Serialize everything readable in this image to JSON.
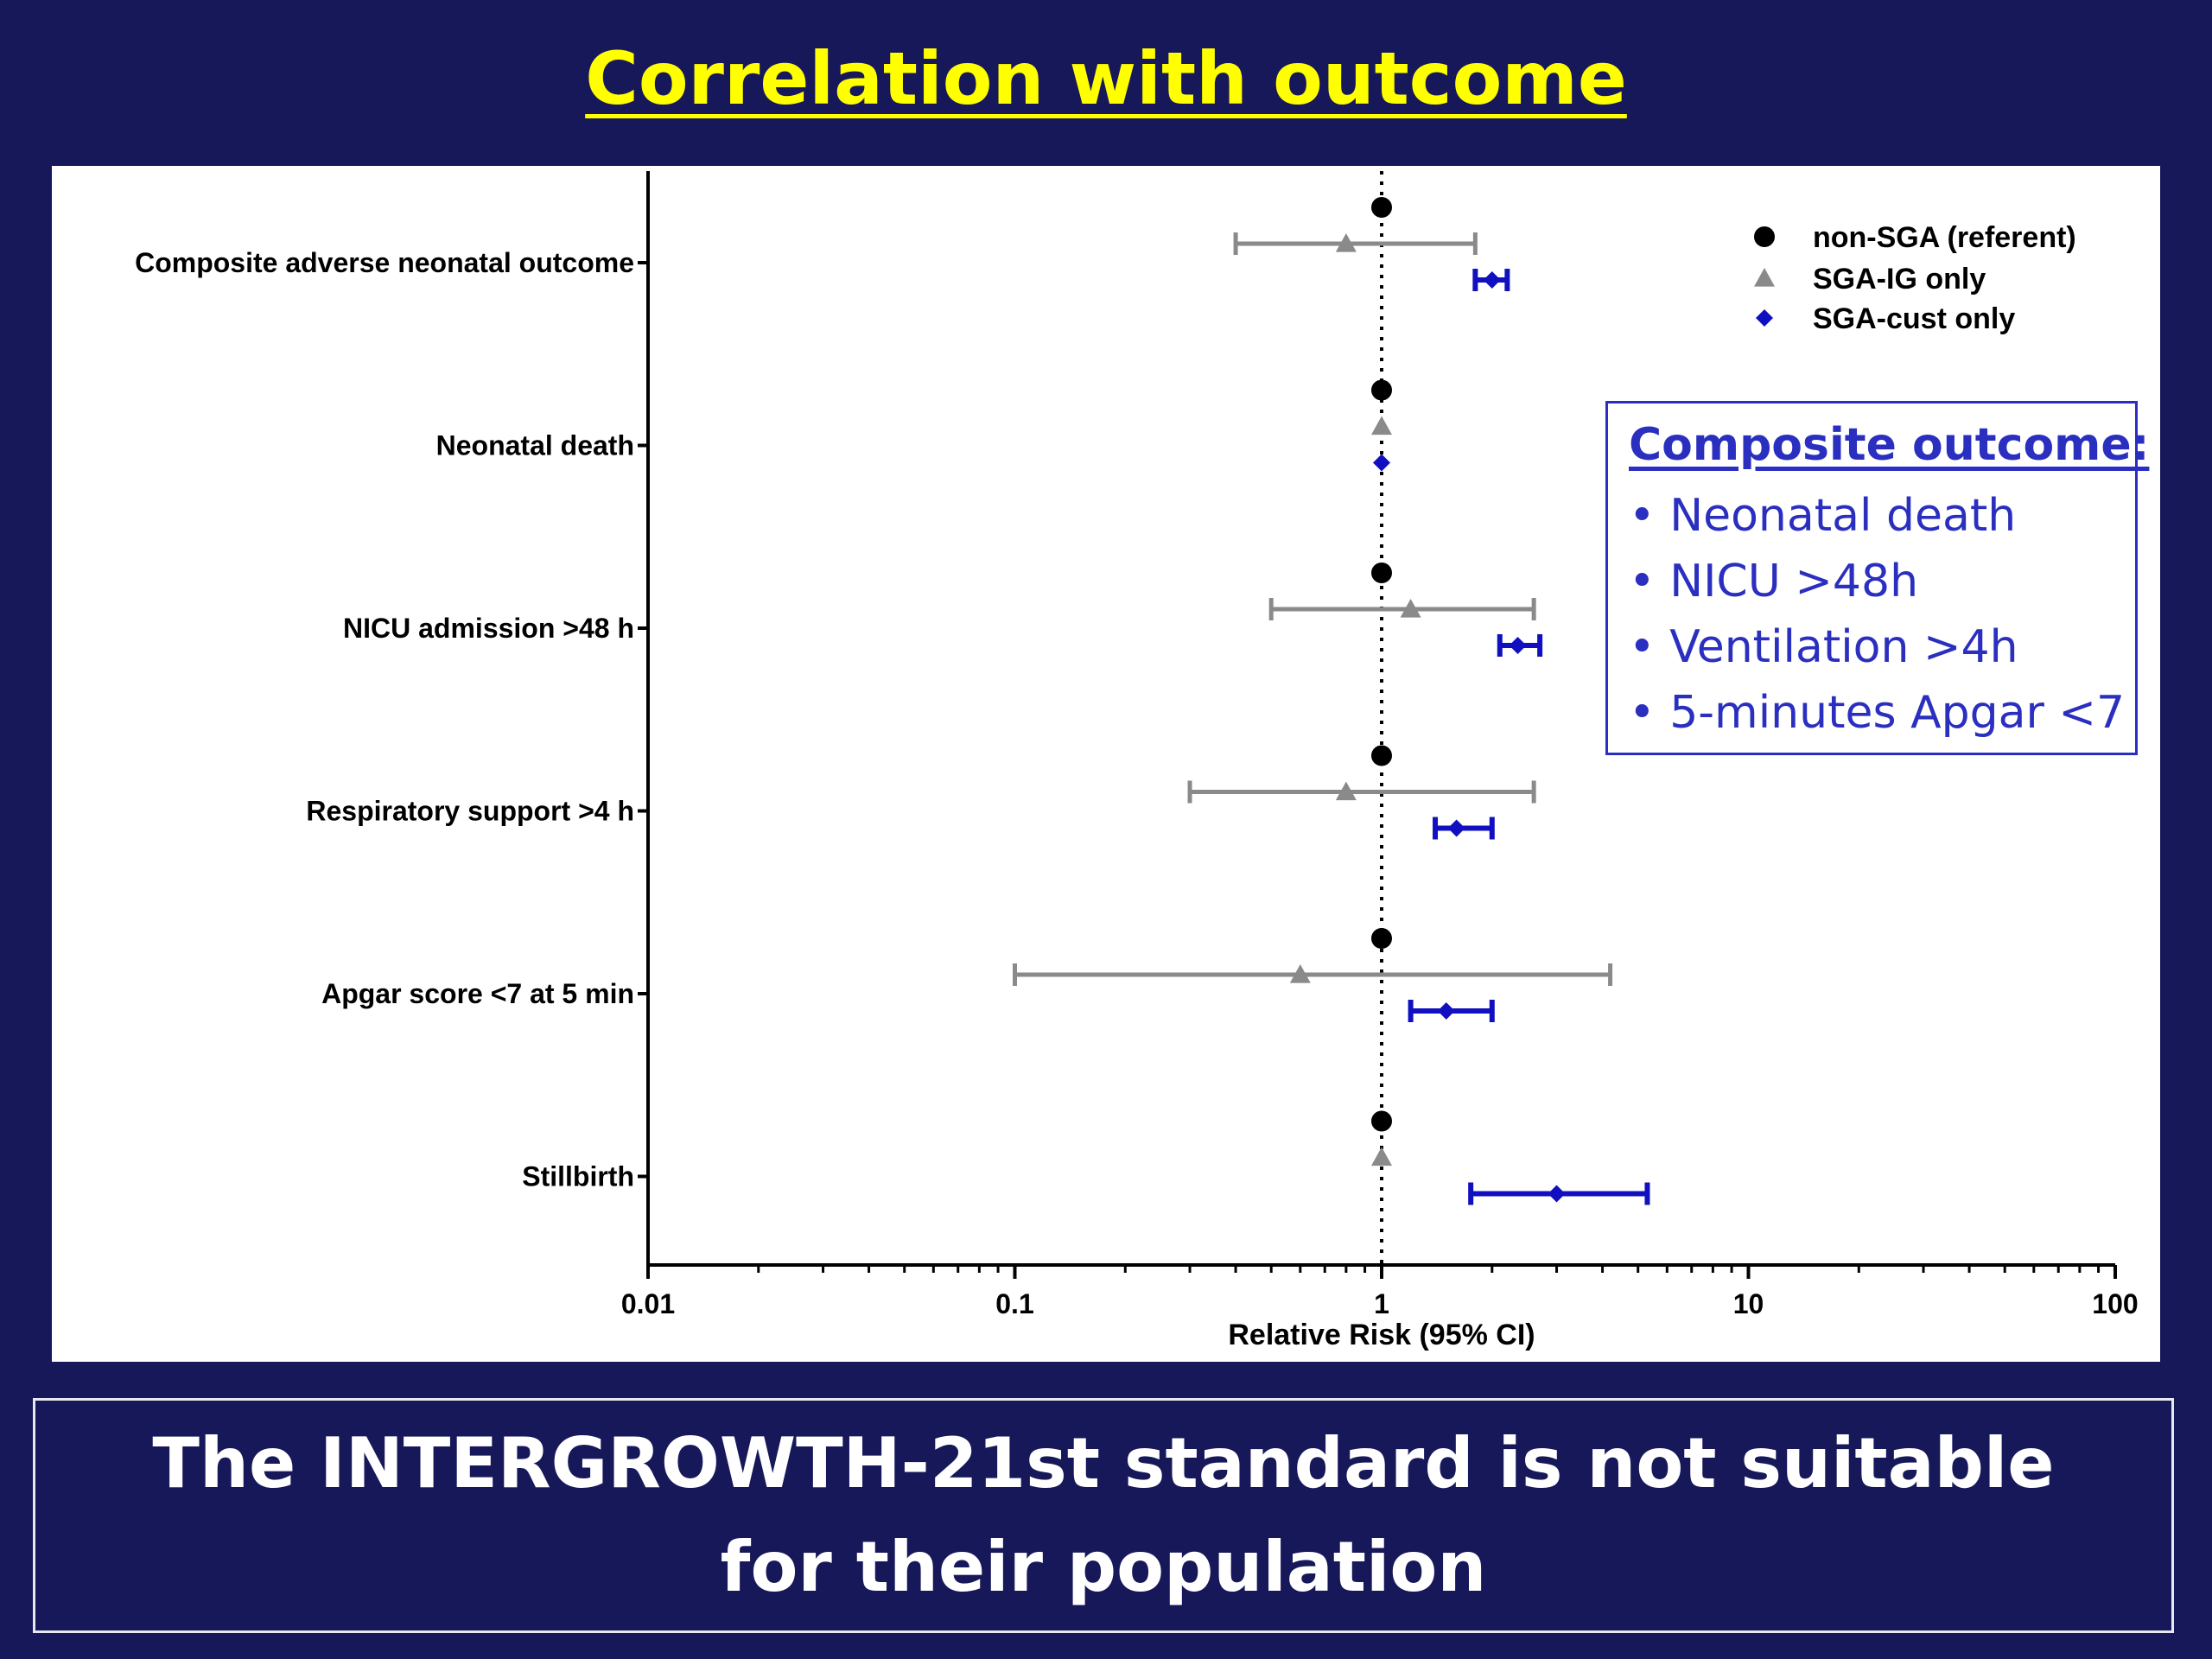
{
  "slide": {
    "title": "Correlation with outcome",
    "conclusion_line1": "The INTERGROWTH-21st standard is not suitable",
    "conclusion_line2": "for their population",
    "background_color": "#17185a",
    "title_color": "#ffff00"
  },
  "composite_box": {
    "title": "Composite outcome:",
    "items": [
      "• Neonatal death",
      "• NICU >48h",
      "• Ventilation >4h",
      "• 5-minutes Apgar <7"
    ],
    "color": "#2a2fc0"
  },
  "chart_data": {
    "type": "forest",
    "xlabel": "Relative Risk (95% CI)",
    "x_scale": "log",
    "xlim": [
      0.01,
      100
    ],
    "x_ticks": [
      0.01,
      0.1,
      1,
      10,
      100
    ],
    "x_tick_labels": [
      "0.01",
      "0.1",
      "1",
      "10",
      "100"
    ],
    "reference_line": 1,
    "legend_position": "top-right",
    "categories": [
      "Composite adverse neonatal outcome",
      "Neonatal death",
      "NICU admission >48 h",
      "Respiratory support >4 h",
      "Apgar score <7 at 5 min",
      "Stillbirth"
    ],
    "series": [
      {
        "name": "non-SGA (referent)",
        "marker": "circle",
        "color": "#000000",
        "points": [
          {
            "rr": 1
          },
          {
            "rr": 1
          },
          {
            "rr": 1
          },
          {
            "rr": 1
          },
          {
            "rr": 1
          },
          {
            "rr": 1
          }
        ]
      },
      {
        "name": "SGA-IG only",
        "marker": "triangle",
        "color": "#8a8a8a",
        "points": [
          {
            "rr": 0.8,
            "lo": 0.4,
            "hi": 1.8
          },
          {
            "rr": 1
          },
          {
            "rr": 1.2,
            "lo": 0.5,
            "hi": 2.6
          },
          {
            "rr": 0.8,
            "lo": 0.3,
            "hi": 2.6
          },
          {
            "rr": 0.6,
            "lo": 0.1,
            "hi": 4.2
          },
          {
            "rr": 1
          }
        ]
      },
      {
        "name": "SGA-cust only",
        "marker": "diamond",
        "color": "#1010c0",
        "points": [
          {
            "rr": 2.0,
            "lo": 1.8,
            "hi": 2.2
          },
          {
            "rr": 1
          },
          {
            "rr": 2.35,
            "lo": 2.1,
            "hi": 2.7
          },
          {
            "rr": 1.6,
            "lo": 1.4,
            "hi": 2.0
          },
          {
            "rr": 1.5,
            "lo": 1.2,
            "hi": 2.0
          },
          {
            "rr": 3.0,
            "lo": 1.75,
            "hi": 5.3
          }
        ]
      }
    ]
  }
}
